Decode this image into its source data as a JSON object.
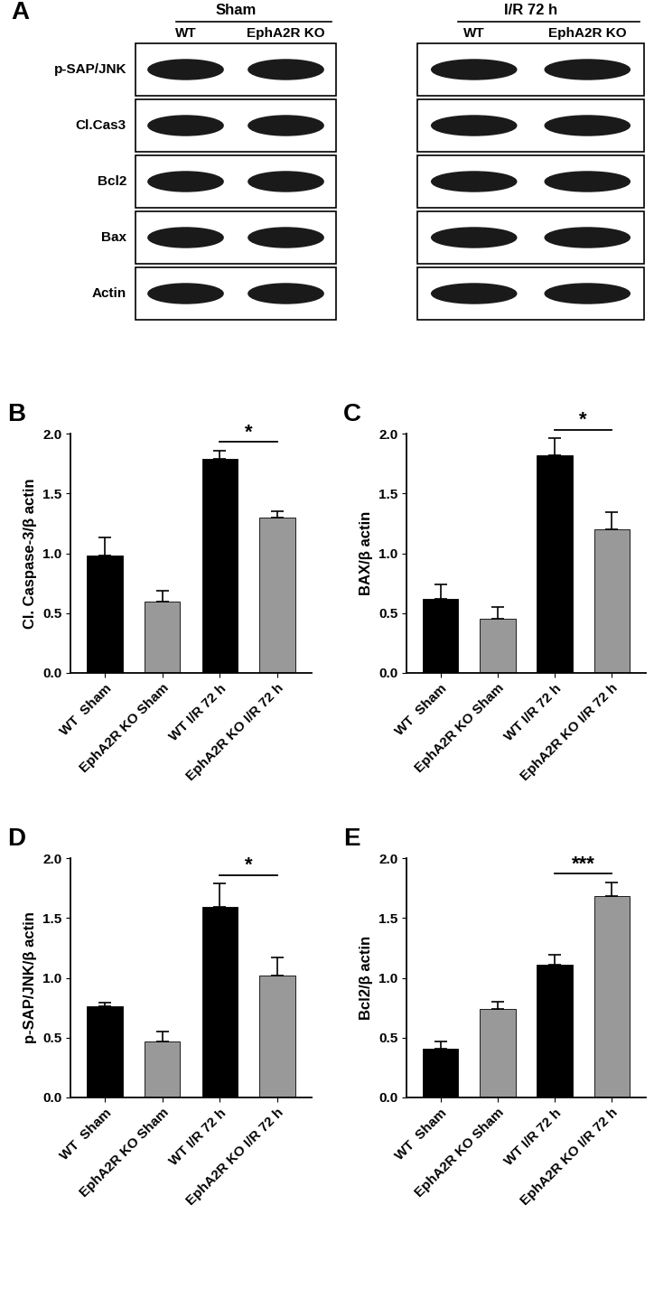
{
  "blot": {
    "panel_label": "A",
    "groups": [
      {
        "label": "Sham",
        "lanes": [
          "WT",
          "EphA2R KO"
        ]
      },
      {
        "label": "I/R 72 h",
        "lanes": [
          "WT",
          "EphA2R KO"
        ]
      }
    ],
    "rows": [
      "p-SAP/JNK",
      "Cl.Cas3",
      "Bcl2",
      "Bax",
      "Actin"
    ]
  },
  "chart_data": [
    {
      "type": "bar",
      "panel_label": "B",
      "y_label": "Cl. Caspase-3/β actin",
      "categories": [
        "WT  Sham",
        "EphA2R KO Sham",
        "WT I/R 72 h",
        "EphA2R KO I/R 72 h"
      ],
      "values": [
        0.98,
        0.6,
        1.79,
        1.3
      ],
      "errors": [
        0.15,
        0.09,
        0.07,
        0.05
      ],
      "colors": [
        "#000000",
        "#999999",
        "#000000",
        "#999999"
      ],
      "ylim": [
        0.0,
        2.0
      ],
      "yticks": [
        0.0,
        0.5,
        1.0,
        1.5,
        2.0
      ],
      "significance": [
        {
          "categories": [
            "WT I/R 72 h",
            "EphA2R KO I/R 72 h"
          ],
          "label": "*"
        }
      ]
    },
    {
      "type": "bar",
      "panel_label": "C",
      "y_label": "BAX/β actin",
      "categories": [
        "WT  Sham",
        "EphA2R KO Sham",
        "WT I/R 72 h",
        "EphA2R KO I/R 72 h"
      ],
      "values": [
        0.62,
        0.45,
        1.82,
        1.2
      ],
      "errors": [
        0.12,
        0.1,
        0.14,
        0.14
      ],
      "colors": [
        "#000000",
        "#999999",
        "#000000",
        "#999999"
      ],
      "ylim": [
        0.0,
        2.0
      ],
      "yticks": [
        0.0,
        0.5,
        1.0,
        1.5,
        2.0
      ],
      "significance": [
        {
          "categories": [
            "WT I/R 72 h",
            "EphA2R KO I/R 72 h"
          ],
          "label": "*"
        }
      ]
    },
    {
      "type": "bar",
      "panel_label": "D",
      "y_label": "p-SAP/JNK/β actin",
      "categories": [
        "WT  Sham",
        "EphA2R KO Sham",
        "WT I/R 72 h",
        "EphA2R KO I/R 72 h"
      ],
      "values": [
        0.76,
        0.47,
        1.59,
        1.02
      ],
      "errors": [
        0.03,
        0.08,
        0.2,
        0.15
      ],
      "colors": [
        "#000000",
        "#999999",
        "#000000",
        "#999999"
      ],
      "ylim": [
        0.0,
        2.0
      ],
      "yticks": [
        0.0,
        0.5,
        1.0,
        1.5,
        2.0
      ],
      "significance": [
        {
          "categories": [
            "WT I/R 72 h",
            "EphA2R KO I/R 72 h"
          ],
          "label": "*"
        }
      ]
    },
    {
      "type": "bar",
      "panel_label": "E",
      "y_label": "Bcl2/β actin",
      "categories": [
        "WT  Sham",
        "EphA2R KO Sham",
        "WT I/R 72 h",
        "EphA2R KO I/R 72 h"
      ],
      "values": [
        0.41,
        0.74,
        1.11,
        1.68
      ],
      "errors": [
        0.06,
        0.06,
        0.08,
        0.12
      ],
      "colors": [
        "#000000",
        "#999999",
        "#000000",
        "#999999"
      ],
      "ylim": [
        0.0,
        2.0
      ],
      "yticks": [
        0.0,
        0.5,
        1.0,
        1.5,
        2.0
      ],
      "significance": [
        {
          "categories": [
            "WT I/R 72 h",
            "EphA2R KO I/R 72 h"
          ],
          "label": "***"
        }
      ]
    }
  ]
}
